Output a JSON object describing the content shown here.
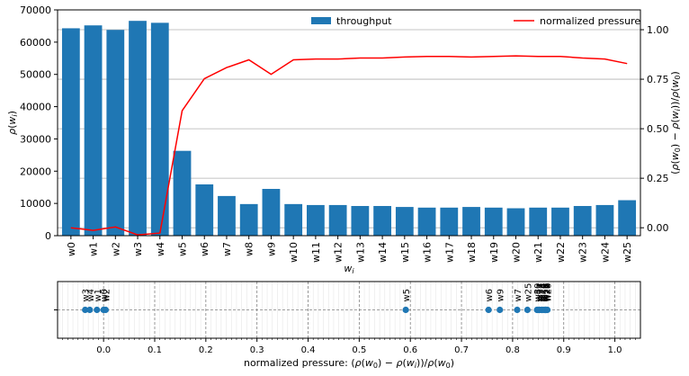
{
  "chart_data": [
    {
      "type": "bar",
      "categories": [
        "w0",
        "w1",
        "w2",
        "w3",
        "w4",
        "w5",
        "w6",
        "w7",
        "w8",
        "w9",
        "w10",
        "w11",
        "w12",
        "w13",
        "w14",
        "w15",
        "w16",
        "w17",
        "w18",
        "w19",
        "w20",
        "w21",
        "w22",
        "w23",
        "w24",
        "w25"
      ],
      "xlabel": "$w_i$",
      "ylabel": "$\\rho(w_i)$",
      "ylim": [
        0,
        70000
      ],
      "yticks": [
        0,
        10000,
        20000,
        30000,
        40000,
        50000,
        60000,
        70000
      ],
      "y2label": "$(\\rho(w_0) - \\rho(w_i))/\\rho(w_0)$",
      "y2lim": [
        -0.04,
        1.1
      ],
      "y2ticks": [
        "0.00",
        "0.25",
        "0.50",
        "0.75",
        "1.00"
      ],
      "grid": "horizontal",
      "series": [
        {
          "name": "throughput",
          "type": "bar",
          "axis": "left",
          "color": "#1f77b4",
          "values": [
            64300,
            65200,
            63800,
            66600,
            66000,
            26300,
            15900,
            12300,
            9800,
            14500,
            9800,
            9500,
            9500,
            9200,
            9200,
            8900,
            8700,
            8700,
            8900,
            8700,
            8500,
            8700,
            8700,
            9200,
            9500,
            11000
          ]
        },
        {
          "name": "normalized pressure",
          "type": "line",
          "axis": "right",
          "color": "#ff0000",
          "values": [
            0.0,
            -0.013,
            0.004,
            -0.036,
            -0.027,
            0.591,
            0.753,
            0.809,
            0.848,
            0.775,
            0.848,
            0.852,
            0.852,
            0.857,
            0.857,
            0.862,
            0.865,
            0.865,
            0.862,
            0.865,
            0.868,
            0.865,
            0.865,
            0.857,
            0.852,
            0.829
          ]
        }
      ],
      "legend": [
        {
          "label": "throughput",
          "position": "top-center"
        },
        {
          "label": "normalized pressure",
          "position": "top-right"
        }
      ]
    },
    {
      "type": "scatter",
      "xlabel": "normalized pressure: $(\\rho(w_0) - \\rho(w_i))/\\rho(w_0)$",
      "xlim": [
        -0.09,
        1.05
      ],
      "xticks": [
        "0.0",
        "0.1",
        "0.2",
        "0.3",
        "0.4",
        "0.5",
        "0.6",
        "0.7",
        "0.8",
        "0.9",
        "1.0"
      ],
      "grid": "vertical",
      "color": "#1f77b4",
      "points": [
        {
          "label": "w0",
          "x": 0.0
        },
        {
          "label": "w1",
          "x": -0.013
        },
        {
          "label": "w2",
          "x": 0.004
        },
        {
          "label": "w3",
          "x": -0.036
        },
        {
          "label": "w4",
          "x": -0.027
        },
        {
          "label": "w5",
          "x": 0.591
        },
        {
          "label": "w6",
          "x": 0.753
        },
        {
          "label": "w7",
          "x": 0.809
        },
        {
          "label": "w8",
          "x": 0.848
        },
        {
          "label": "w9",
          "x": 0.775
        },
        {
          "label": "w10",
          "x": 0.848
        },
        {
          "label": "w11",
          "x": 0.852
        },
        {
          "label": "w12",
          "x": 0.852
        },
        {
          "label": "w13",
          "x": 0.857
        },
        {
          "label": "w14",
          "x": 0.857
        },
        {
          "label": "w15",
          "x": 0.862
        },
        {
          "label": "w16",
          "x": 0.865
        },
        {
          "label": "w17",
          "x": 0.865
        },
        {
          "label": "w18",
          "x": 0.862
        },
        {
          "label": "w19",
          "x": 0.865
        },
        {
          "label": "w20",
          "x": 0.868
        },
        {
          "label": "w21",
          "x": 0.865
        },
        {
          "label": "w22",
          "x": 0.865
        },
        {
          "label": "w23",
          "x": 0.857
        },
        {
          "label": "w24",
          "x": 0.852
        },
        {
          "label": "w25",
          "x": 0.829
        }
      ]
    }
  ]
}
